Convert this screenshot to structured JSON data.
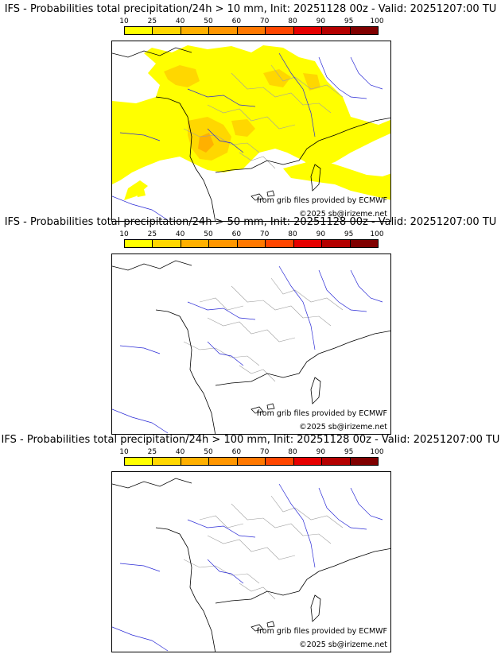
{
  "panels": [
    {
      "title": "IFS - Probabilities total precipitation/24h > 10 mm, Init: 20251128 00z - Valid: 20251207:00 TU",
      "has_precip": true
    },
    {
      "title": "IFS - Probabilities total precipitation/24h > 50 mm, Init: 20251128 00z - Valid: 20251207:00 TU",
      "has_precip": false
    },
    {
      "title": "IFS - Probabilities total precipitation/24h > 100 mm, Init: 20251128 00z - Valid: 20251207:00 TU",
      "has_precip": false
    }
  ],
  "colorbar": {
    "ticks": [
      "10",
      "25",
      "40",
      "50",
      "60",
      "70",
      "80",
      "90",
      "95",
      "100"
    ],
    "colors": [
      "#ffff00",
      "#ffd700",
      "#ffb000",
      "#ff9600",
      "#ff7800",
      "#ff4600",
      "#e60000",
      "#b40000",
      "#800000",
      "#500000"
    ]
  },
  "credits": {
    "source": "from grib files provided by ECMWF",
    "copyright": "©2025 sb@irizeme.net"
  },
  "colors": {
    "precip_low": "#ffff00",
    "precip_mid": "#ffd700",
    "precip_high": "#ffb000",
    "coast": "#000000",
    "rivers": "#2b2bd6",
    "borders": "#a0a0a0"
  }
}
